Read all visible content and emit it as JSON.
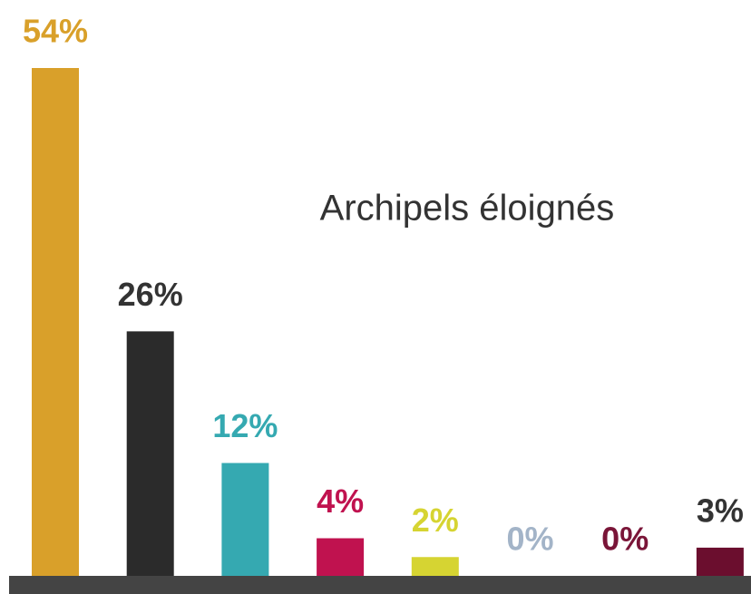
{
  "chart_data": {
    "type": "bar",
    "title": "Archipels éloignés",
    "categories": [
      null,
      null,
      null,
      null,
      null,
      null,
      null,
      null
    ],
    "values": [
      54,
      26,
      12,
      4,
      2,
      0,
      0,
      3
    ],
    "value_labels": [
      "54%",
      "26%",
      "12%",
      "4%",
      "2%",
      "0%",
      "0%",
      "3%"
    ],
    "colors": [
      "#d9a02a",
      "#2b2b2b",
      "#35a9b1",
      "#c0124f",
      "#d6d432",
      "#a3b4c8",
      "#7a1538",
      "#6b0e2e"
    ],
    "label_colors": [
      "#d9a02a",
      "#333333",
      "#35a9b1",
      "#c0124f",
      "#d6d432",
      "#a3b4c8",
      "#7a1538",
      "#333333"
    ]
  }
}
